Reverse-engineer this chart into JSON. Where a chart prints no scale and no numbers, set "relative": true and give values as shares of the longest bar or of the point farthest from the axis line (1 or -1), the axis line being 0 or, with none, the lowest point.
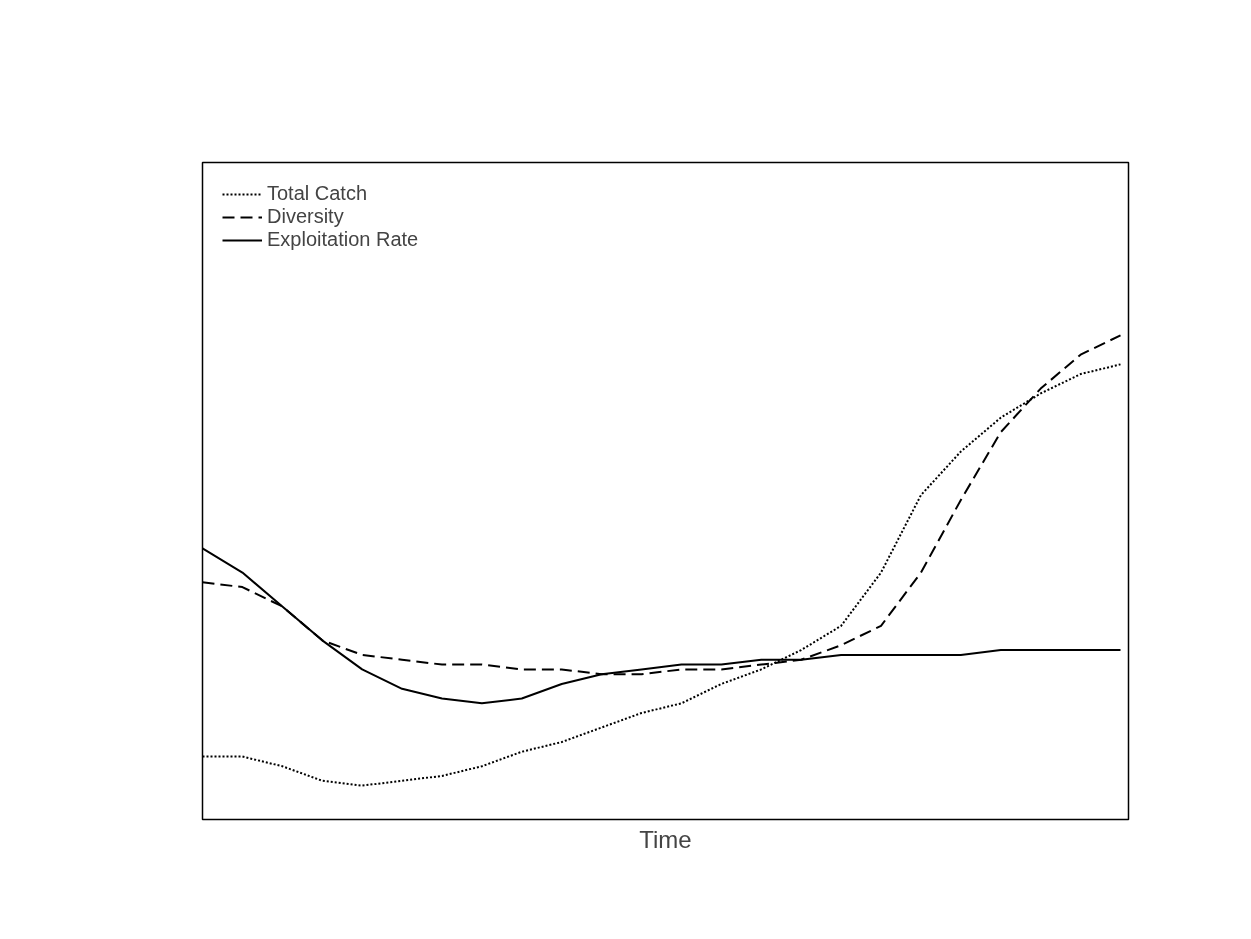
{
  "chart_data": {
    "type": "line",
    "relative": true,
    "xlabel": "Time",
    "legend": "top left",
    "grid": false,
    "marker": "none",
    "categories": [
      null,
      null,
      null,
      null,
      null,
      null,
      null,
      null,
      null,
      null,
      null,
      null,
      null,
      null,
      null,
      null,
      null,
      null,
      null,
      null,
      null,
      null,
      null,
      null
    ],
    "series": [
      {
        "name": "Total Catch",
        "color": "#000000",
        "line_style": "dotted",
        "values": [
          0.13,
          0.13,
          0.11,
          0.08,
          0.07,
          0.08,
          0.09,
          0.11,
          0.14,
          0.16,
          0.19,
          0.22,
          0.24,
          0.28,
          0.31,
          0.35,
          0.4,
          0.51,
          0.67,
          0.76,
          0.83,
          0.88,
          0.92,
          0.94
        ]
      },
      {
        "name": "Diversity",
        "color": "#000000",
        "line_style": "dashed",
        "values": [
          0.49,
          0.48,
          0.44,
          0.37,
          0.34,
          0.33,
          0.32,
          0.32,
          0.31,
          0.31,
          0.3,
          0.3,
          0.31,
          0.31,
          0.32,
          0.33,
          0.36,
          0.4,
          0.51,
          0.66,
          0.8,
          0.89,
          0.96,
          1.0
        ]
      },
      {
        "name": "Exploitation Rate",
        "color": "#000000",
        "line_style": "solid",
        "values": [
          0.56,
          0.51,
          0.44,
          0.37,
          0.31,
          0.27,
          0.25,
          0.24,
          0.25,
          0.28,
          0.3,
          0.31,
          0.32,
          0.32,
          0.33,
          0.33,
          0.34,
          0.34,
          0.34,
          0.34,
          0.35,
          0.35,
          0.35,
          0.35
        ]
      }
    ]
  }
}
